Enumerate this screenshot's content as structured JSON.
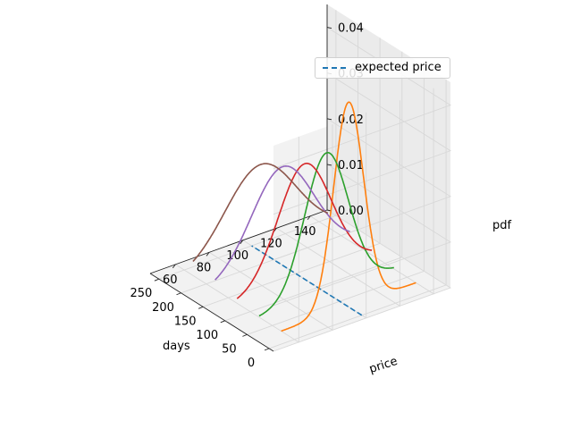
{
  "chart_data": {
    "type": "line",
    "projection": "3d",
    "xlabel": "price",
    "ylabel": "days",
    "zlabel": "pdf",
    "xlim": [
      45,
      150
    ],
    "ylim": [
      -10,
      270
    ],
    "zlim": [
      0,
      0.045
    ],
    "xticks": [
      "60",
      "80",
      "100",
      "120",
      "140"
    ],
    "yticks": [
      "0",
      "50",
      "100",
      "150",
      "200",
      "250"
    ],
    "zticks": [
      "0.00",
      "0.01",
      "0.02",
      "0.03",
      "0.04"
    ],
    "grid": true,
    "legend": {
      "position": "top-right",
      "entries": [
        {
          "label": "expected price",
          "color": "#1f77b4",
          "style": "dashed"
        }
      ]
    },
    "expected_price": {
      "color": "#1f77b4",
      "price": 100,
      "days_start": 0,
      "days_end": 250
    },
    "price_range": [
      60,
      140
    ],
    "series": [
      {
        "color": "#ff7f0e",
        "days": 30,
        "mean": 100,
        "std": 8.9
      },
      {
        "color": "#2ca02c",
        "days": 80,
        "mean": 100,
        "std": 13.0
      },
      {
        "color": "#d62728",
        "days": 130,
        "mean": 100,
        "std": 15.8
      },
      {
        "color": "#9467bd",
        "days": 180,
        "mean": 100,
        "std": 18.5
      },
      {
        "color": "#8c564b",
        "days": 230,
        "mean": 100,
        "std": 21.0
      }
    ]
  }
}
